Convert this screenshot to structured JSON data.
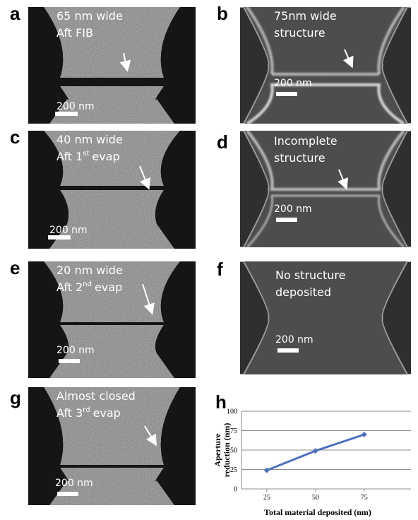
{
  "panels": [
    {
      "label": "a",
      "lines": [
        {
          "text": "65 nm wide"
        },
        {
          "text": "Aft FIB"
        }
      ],
      "scale": "200 nm"
    },
    {
      "label": "b",
      "lines": [
        {
          "text": "75nm wide"
        },
        {
          "text": "structure"
        }
      ],
      "scale": "200 nm"
    },
    {
      "label": "c",
      "lines": [
        {
          "text": "40 nm wide"
        },
        {
          "text": "Aft 1",
          "sup": "st",
          "rest": "evap"
        }
      ],
      "scale": "200 nm"
    },
    {
      "label": "d",
      "lines": [
        {
          "text": "Incomplete"
        },
        {
          "text": "structure"
        }
      ],
      "scale": "200 nm"
    },
    {
      "label": "e",
      "lines": [
        {
          "text": "20 nm wide"
        },
        {
          "text": "Aft 2",
          "sup": "nd",
          "rest": "evap"
        }
      ],
      "scale": "200 nm"
    },
    {
      "label": "f",
      "lines": [
        {
          "text": "No structure"
        },
        {
          "text": "deposited"
        }
      ],
      "scale": "200 nm"
    },
    {
      "label": "g",
      "lines": [
        {
          "text": "Almost closed"
        },
        {
          "text": "Aft 3",
          "sup": "rd",
          "rest": "evap"
        }
      ],
      "scale": "200 nm"
    }
  ],
  "chart_data": {
    "type": "line",
    "label": "h",
    "x_label": "Total material deposited (nm)",
    "y_label": [
      "Aperture",
      "reduction (nm)"
    ],
    "x": [
      25,
      50,
      75
    ],
    "series": [
      {
        "color": "#4f6fbf",
        "values": [
          24,
          49,
          70
        ]
      }
    ],
    "xlim": [
      12,
      99
    ],
    "xticks": [
      25,
      50,
      75
    ],
    "ylim": [
      0,
      100
    ],
    "yticks": [
      0,
      25,
      50,
      75,
      100
    ],
    "grid": true
  }
}
